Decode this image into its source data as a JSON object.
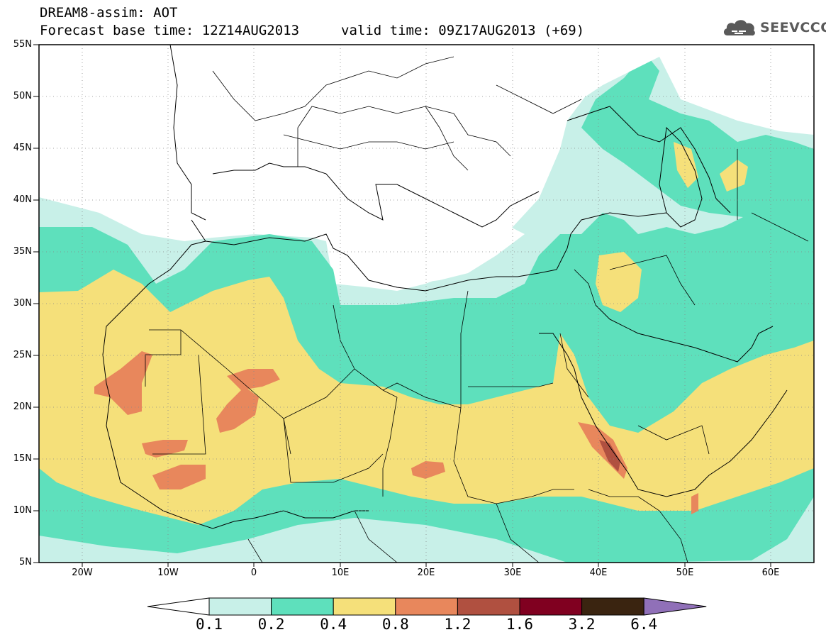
{
  "header": {
    "title_line1": "DREAM8-assim: AOT",
    "base_time": "Forecast base time: 12Z14AUG2013",
    "valid_time": "valid time: 09Z17AUG2013 (+69)"
  },
  "logo": {
    "text": "SEEVCCC",
    "icon": "cloud-icon"
  },
  "map": {
    "projection": "lat-lon",
    "lon_range": [
      -25,
      65
    ],
    "lat_range": [
      5,
      55
    ],
    "lat_labels": [
      "55N",
      "50N",
      "45N",
      "40N",
      "35N",
      "30N",
      "25N",
      "20N",
      "15N",
      "10N",
      "5N"
    ],
    "lon_labels": [
      "20W",
      "10W",
      "0",
      "10E",
      "20E",
      "30E",
      "40E",
      "50E",
      "60E"
    ],
    "gridlines": "dotted"
  },
  "colorbar": {
    "labels": [
      "0.1",
      "0.2",
      "0.4",
      "0.8",
      "1.2",
      "1.6",
      "3.2",
      "6.4"
    ],
    "colors": [
      "#ffffff",
      "#c8f0e8",
      "#5ee0bc",
      "#f5e07a",
      "#e8875c",
      "#b05040",
      "#800020",
      "#3a2410",
      "#9070b8"
    ]
  },
  "colors": {
    "aot_0.1": "#c8f0e8",
    "aot_0.2": "#5ee0bc",
    "aot_0.4": "#f5e07a",
    "aot_0.8": "#e8875c",
    "aot_1.2": "#b05040"
  }
}
